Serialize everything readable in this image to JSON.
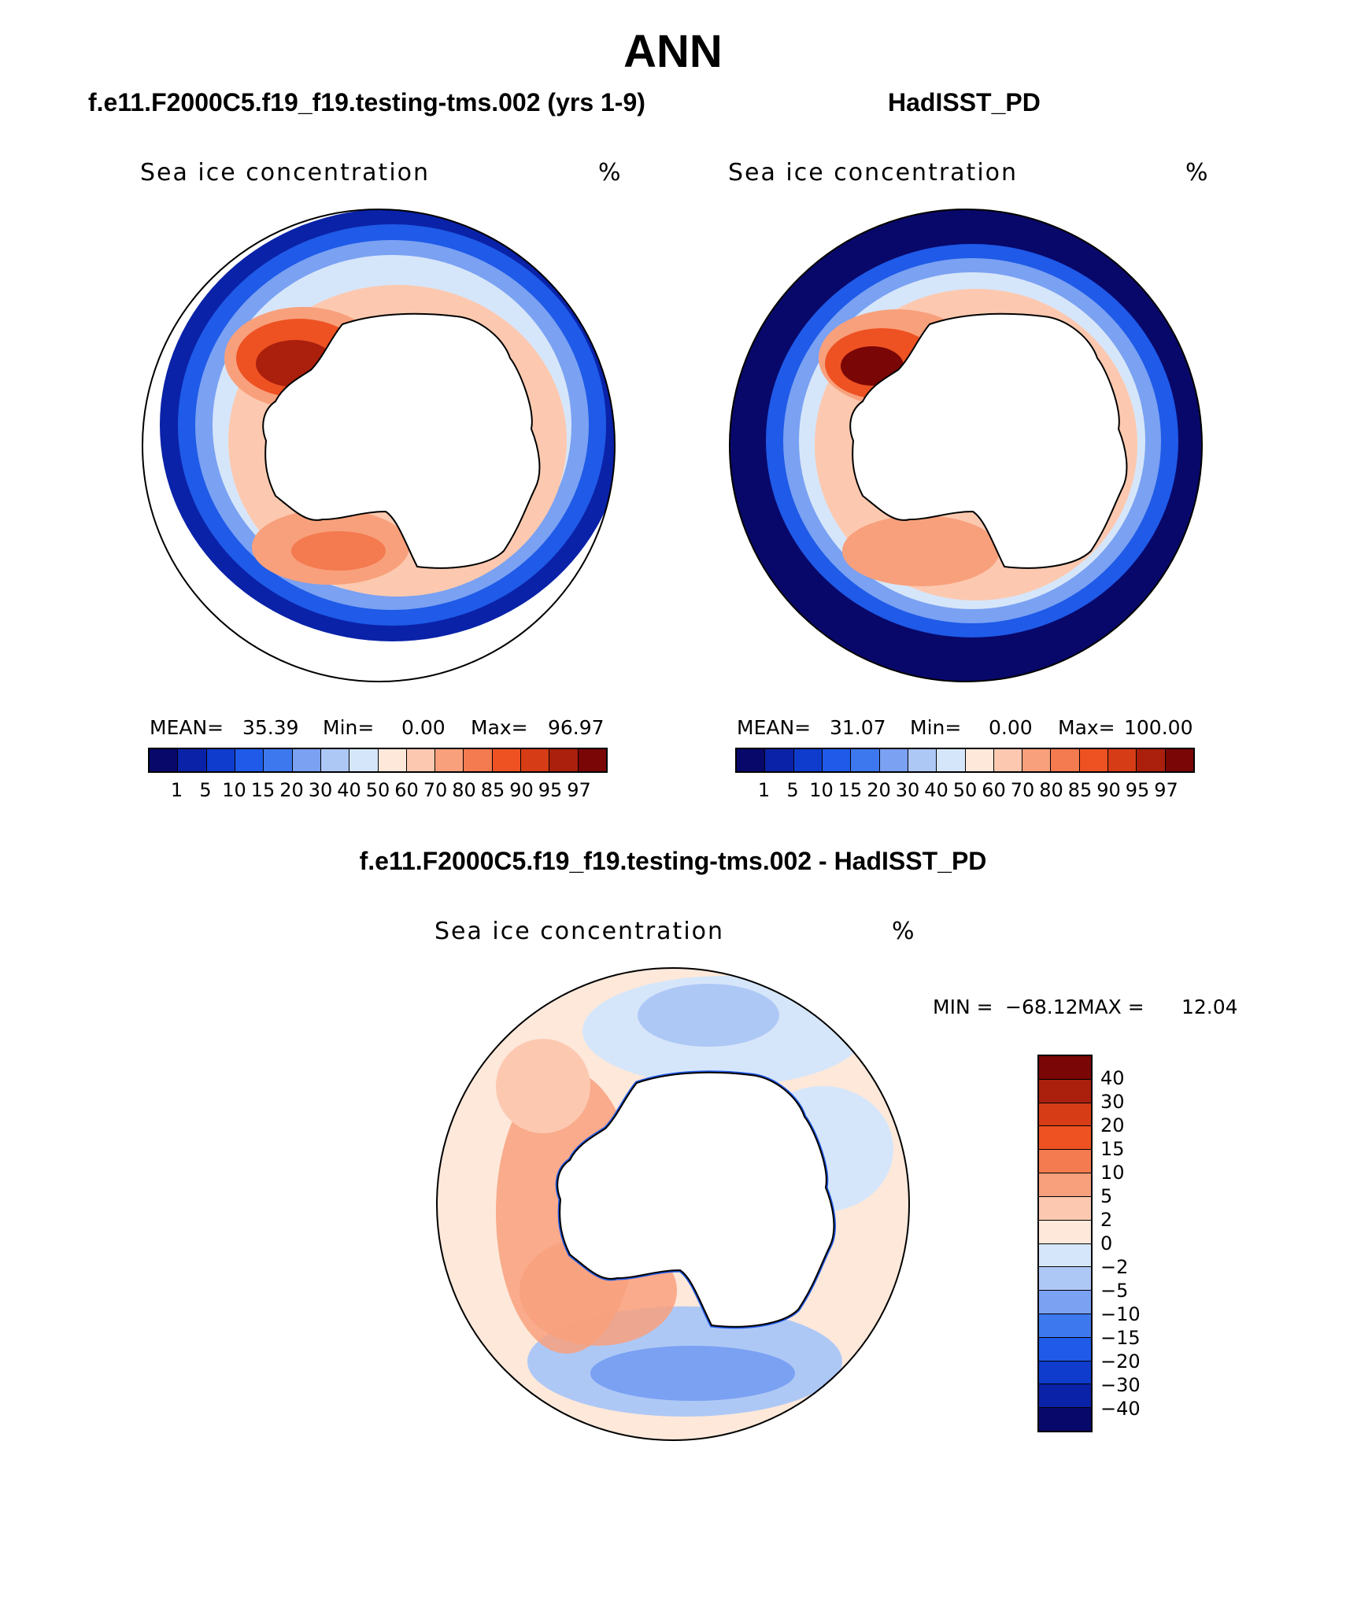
{
  "title": "ANN",
  "panels": {
    "model": {
      "title": "f.e11.F2000C5.f19_f19.testing-tms.002 (yrs 1-9)",
      "label": "Sea ice concentration",
      "units": "%",
      "mean_label": "MEAN=",
      "mean": "35.39",
      "min_label": "Min=",
      "min": "0.00",
      "max_label": "Max=",
      "max": "96.97"
    },
    "obs": {
      "title": "HadISST_PD",
      "label": "Sea ice concentration",
      "units": "%",
      "mean_label": "MEAN=",
      "mean": "31.07",
      "min_label": "Min=",
      "min": "0.00",
      "max_label": "Max=",
      "max": "100.00"
    },
    "diff": {
      "title": "f.e11.F2000C5.f19_f19.testing-tms.002 - HadISST_PD",
      "label": "Sea ice concentration",
      "units": "%",
      "min_label": "MIN =",
      "min": "−68.12",
      "max_label": "MAX =",
      "max": "12.04"
    }
  },
  "colorbars": {
    "concentration": {
      "colors": [
        "#08086b",
        "#0a22a8",
        "#0f3ccc",
        "#1f5ae8",
        "#3e78ee",
        "#7aa1f2",
        "#aec8f6",
        "#d6e6fa",
        "#fde8da",
        "#fcc9b0",
        "#f8a07c",
        "#f47a4f",
        "#ee5222",
        "#d63d16",
        "#aa200d",
        "#7a0606"
      ],
      "ticks": [
        "1",
        "5",
        "10",
        "15",
        "20",
        "30",
        "40",
        "50",
        "60",
        "70",
        "80",
        "85",
        "90",
        "95",
        "97"
      ]
    },
    "difference": {
      "colors": [
        "#7a0606",
        "#aa200d",
        "#d63d16",
        "#ee5222",
        "#f47a4f",
        "#f8a07c",
        "#fcc9b0",
        "#fde8da",
        "#d6e6fa",
        "#aec8f6",
        "#7aa1f2",
        "#3e78ee",
        "#1f5ae8",
        "#0f3ccc",
        "#0a22a8",
        "#08086b"
      ],
      "ticks": [
        "40",
        "30",
        "20",
        "15",
        "10",
        "5",
        "2",
        "0",
        "−2",
        "−5",
        "−10",
        "−15",
        "−20",
        "−30",
        "−40"
      ]
    }
  },
  "chart_data": [
    {
      "type": "heatmap",
      "projection": "south polar stereographic",
      "title": "f.e11.F2000C5.f19_f19.testing-tms.002 (yrs 1-9)",
      "variable": "Sea ice concentration",
      "units": "%",
      "stats": {
        "mean": 35.39,
        "min": 0.0,
        "max": 96.97
      },
      "contour_levels": [
        1,
        5,
        10,
        15,
        20,
        30,
        40,
        50,
        60,
        70,
        80,
        85,
        90,
        95,
        97
      ]
    },
    {
      "type": "heatmap",
      "projection": "south polar stereographic",
      "title": "HadISST_PD",
      "variable": "Sea ice concentration",
      "units": "%",
      "stats": {
        "mean": 31.07,
        "min": 0.0,
        "max": 100.0
      },
      "contour_levels": [
        1,
        5,
        10,
        15,
        20,
        30,
        40,
        50,
        60,
        70,
        80,
        85,
        90,
        95,
        97
      ]
    },
    {
      "type": "heatmap",
      "projection": "south polar stereographic",
      "title": "f.e11.F2000C5.f19_f19.testing-tms.002 - HadISST_PD",
      "variable": "Sea ice concentration",
      "units": "%",
      "stats": {
        "min": -68.12,
        "max": 12.04
      },
      "contour_levels": [
        -40,
        -30,
        -20,
        -15,
        -10,
        -5,
        -2,
        0,
        2,
        5,
        10,
        15,
        20,
        30,
        40
      ]
    }
  ]
}
